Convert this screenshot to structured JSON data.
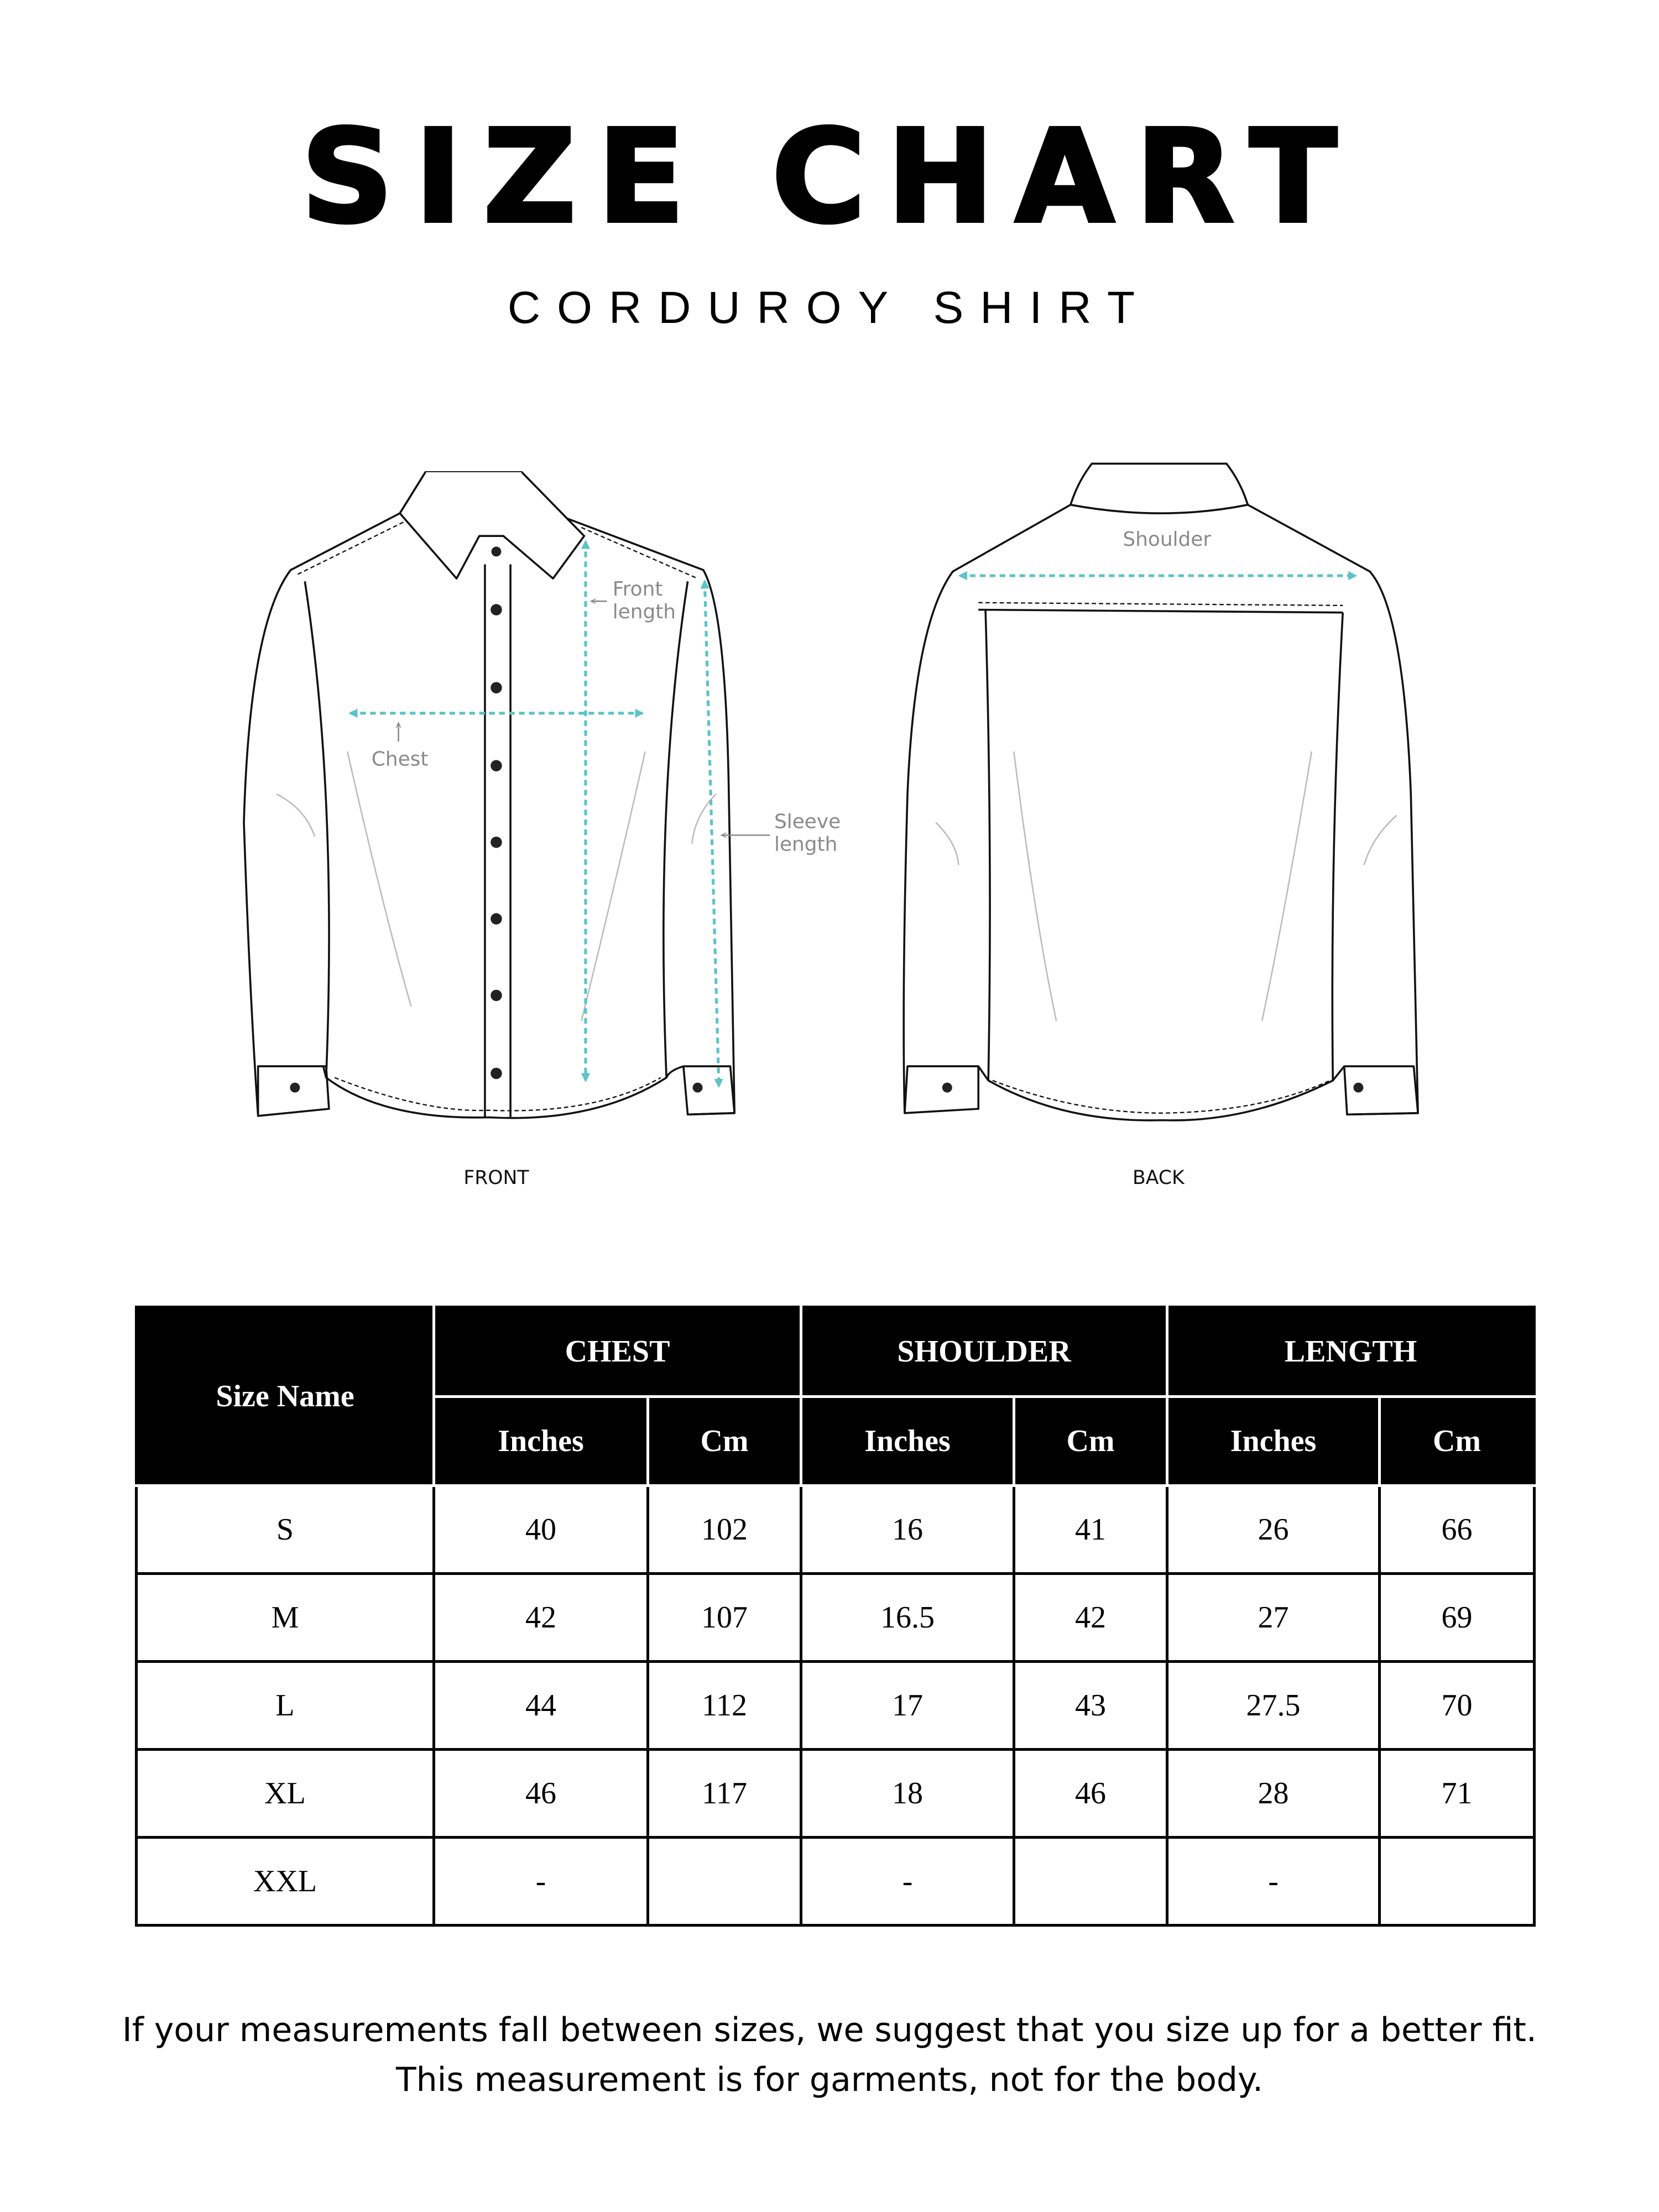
{
  "header": {
    "title": "SIZE CHART",
    "subtitle": "CORDUROY SHIRT"
  },
  "illustration": {
    "front_label": "FRONT",
    "back_label": "BACK",
    "measure_color": "#5cc3c8",
    "annotations": {
      "front_length": [
        "Front",
        "length"
      ],
      "chest": "Chest",
      "sleeve_length": [
        "Sleeve",
        "length"
      ],
      "shoulder": "Shoulder"
    }
  },
  "table": {
    "size_header": "Size Name",
    "groups": [
      "CHEST",
      "SHOULDER",
      "LENGTH"
    ],
    "units": [
      "Inches",
      "Cm",
      "Inches",
      "Cm",
      "Inches",
      "Cm"
    ],
    "rows": [
      [
        "S",
        "40",
        "102",
        "16",
        "41",
        "26",
        "66"
      ],
      [
        "M",
        "42",
        "107",
        "16.5",
        "42",
        "27",
        "69"
      ],
      [
        "L",
        "44",
        "112",
        "17",
        "43",
        "27.5",
        "70"
      ],
      [
        "XL",
        "46",
        "117",
        "18",
        "46",
        "28",
        "71"
      ],
      [
        "XXL",
        "-",
        "",
        "-",
        "",
        "-",
        ""
      ]
    ]
  },
  "footer": {
    "line1": "If your measurements fall between sizes, we suggest that you size up for a better fit.",
    "line2": "This measurement is for garments, not for the body."
  }
}
